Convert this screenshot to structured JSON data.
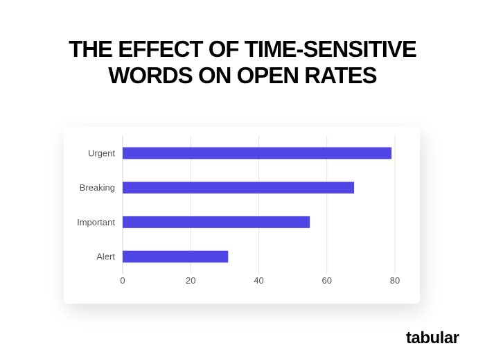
{
  "title_lines": [
    "THE EFFECT OF TIME-SENSITIVE",
    "WORDS ON OPEN RATES"
  ],
  "logo": "tabular",
  "chart_data": {
    "type": "bar",
    "orientation": "horizontal",
    "categories": [
      "Urgent",
      "Breaking",
      "Important",
      "Alert"
    ],
    "values": [
      79,
      68,
      55,
      31
    ],
    "xlim": [
      0,
      80
    ],
    "xticks": [
      0,
      20,
      40,
      60,
      80
    ],
    "grid": "vertical",
    "bar_color": "#5046e5"
  }
}
